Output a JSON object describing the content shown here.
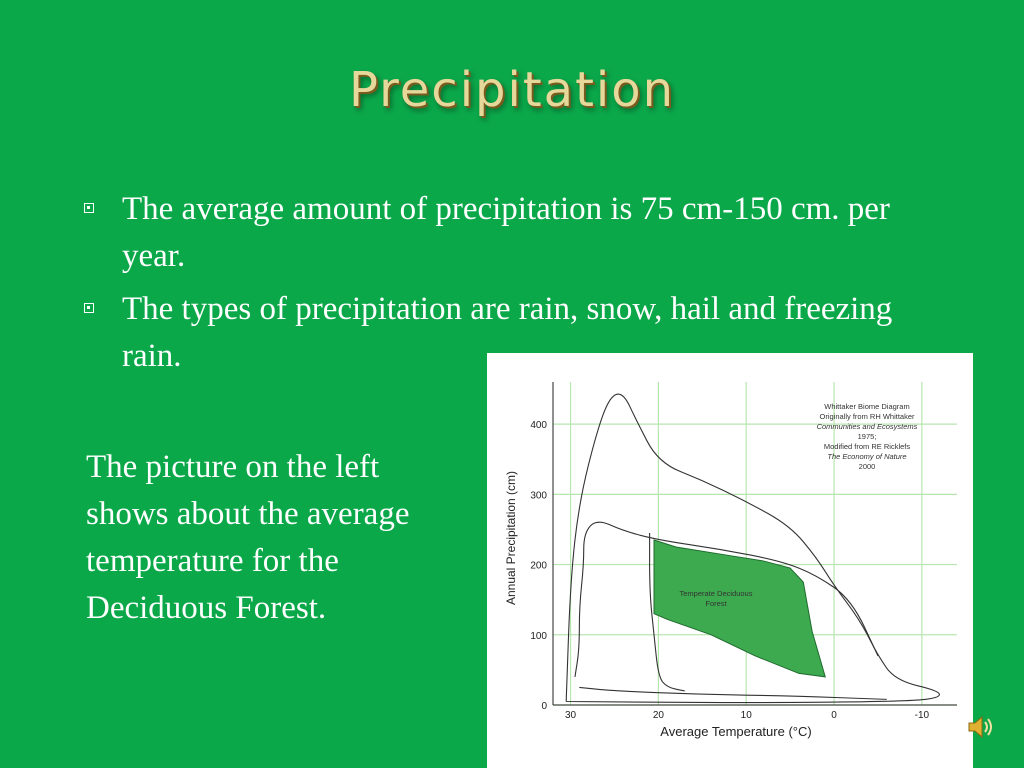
{
  "slide": {
    "title": "Precipitation",
    "bullets": [
      "The average amount of precipitation is 75 cm-150 cm. per year.",
      "The types of precipitation are rain, snow, hail and freezing rain."
    ],
    "side_text": "The picture on the left shows about the average temperature for the Deciduous Forest.",
    "background_color": "#0ba84a",
    "title_color": "#e6d79a"
  },
  "figure": {
    "credit_lines": [
      "Whittaker Biome Diagram",
      "Originally from RH Whittaker",
      "Communities and Ecosystems",
      "1975;",
      "Modified from RE Ricklefs",
      "The Economy of Nature",
      "2000"
    ],
    "region_label_line1": "Temperate Deciduous",
    "region_label_line2": "Forest",
    "region_color": "#3daa4f",
    "grid_color": "#b8e6b0"
  },
  "chart_data": {
    "type": "area",
    "xlabel": "Average Temperature (°C)",
    "ylabel": "Annual Precipitation (cm)",
    "x_ticks": [
      "30",
      "20",
      "10",
      "0",
      "-10"
    ],
    "y_ticks": [
      "0",
      "100",
      "200",
      "300",
      "400"
    ],
    "x_reversed": true,
    "xlim": [
      32,
      -14
    ],
    "ylim": [
      0,
      460
    ],
    "grid": true,
    "series": [
      {
        "name": "Temperate Deciduous Forest",
        "points": [
          [
            20.5,
            235
          ],
          [
            18,
            225
          ],
          [
            12,
            213
          ],
          [
            8,
            205
          ],
          [
            5,
            195
          ],
          [
            3.5,
            175
          ],
          [
            3,
            140
          ],
          [
            2.5,
            105
          ],
          [
            1,
            40
          ],
          [
            4,
            45
          ],
          [
            9,
            70
          ],
          [
            14,
            100
          ],
          [
            19,
            122
          ],
          [
            20.5,
            130
          ]
        ]
      }
    ],
    "boundaries": [
      {
        "points": [
          [
            30.5,
            5
          ],
          [
            30,
            180
          ],
          [
            29,
            290
          ],
          [
            27,
            390
          ],
          [
            25.5,
            440
          ],
          [
            24,
            445
          ],
          [
            22.5,
            405
          ],
          [
            20,
            345
          ],
          [
            15,
            320
          ],
          [
            10,
            290
          ],
          [
            5,
            255
          ],
          [
            2,
            210
          ],
          [
            0,
            170
          ],
          [
            -3,
            120
          ],
          [
            -5,
            70
          ],
          [
            -7,
            35
          ],
          [
            -12,
            20
          ],
          [
            -12,
            10
          ],
          [
            -8,
            5
          ],
          [
            10,
            3
          ],
          [
            30.5,
            5
          ]
        ]
      },
      {
        "points": [
          [
            29.5,
            40
          ],
          [
            29,
            80
          ],
          [
            29,
            140
          ],
          [
            28.5,
            200
          ],
          [
            28.5,
            245
          ],
          [
            27,
            265
          ],
          [
            24,
            248
          ],
          [
            20,
            235
          ],
          [
            13,
            222
          ],
          [
            6,
            205
          ],
          [
            2,
            185
          ],
          [
            -2,
            150
          ],
          [
            -5,
            70
          ]
        ]
      },
      {
        "points": [
          [
            21,
            245
          ],
          [
            21,
            160
          ],
          [
            20.5,
            100
          ],
          [
            20,
            40
          ],
          [
            19,
            25
          ],
          [
            17,
            20
          ]
        ]
      },
      {
        "points": [
          [
            29,
            25
          ],
          [
            25,
            20
          ],
          [
            15,
            15
          ],
          [
            5,
            13
          ],
          [
            -6,
            8
          ]
        ]
      }
    ]
  }
}
